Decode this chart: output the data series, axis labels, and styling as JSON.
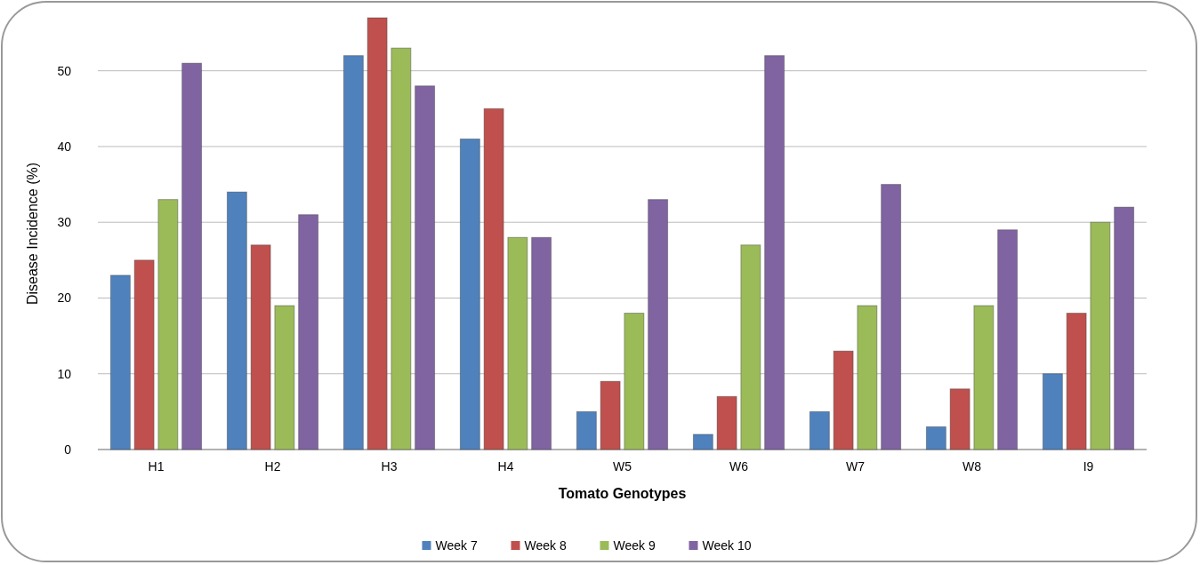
{
  "chart_data": {
    "type": "bar",
    "xlabel": "Tomato Genotypes",
    "ylabel": "Disease Incidence (%)",
    "categories": [
      "H1",
      "H2",
      "H3",
      "H4",
      "W5",
      "W6",
      "W7",
      "W8",
      "I9"
    ],
    "series": [
      {
        "name": "Week 7",
        "color": "#4f81bd",
        "values": [
          23,
          34,
          52,
          41,
          5,
          2,
          5,
          3,
          10
        ]
      },
      {
        "name": "Week 8",
        "color": "#c0504d",
        "values": [
          25,
          27,
          57,
          45,
          9,
          7,
          13,
          8,
          18
        ]
      },
      {
        "name": "Week 9",
        "color": "#9bbb59",
        "values": [
          33,
          19,
          53,
          28,
          18,
          27,
          19,
          19,
          30
        ]
      },
      {
        "name": "Week 10",
        "color": "#8064a2",
        "values": [
          51,
          31,
          48,
          28,
          33,
          52,
          35,
          29,
          32
        ]
      }
    ],
    "ylim": [
      0,
      57
    ],
    "yticks": [
      0,
      10,
      20,
      30,
      40,
      50
    ],
    "grid": "y",
    "legend": "bottom"
  }
}
